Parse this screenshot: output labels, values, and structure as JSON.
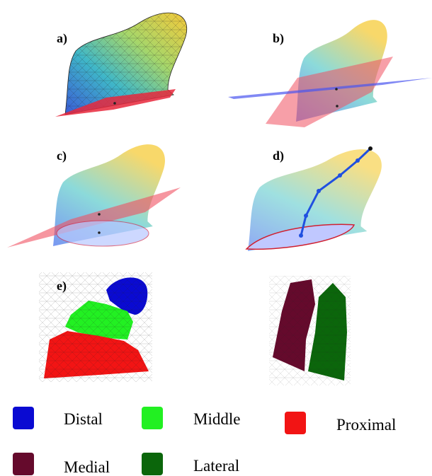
{
  "panels": [
    {
      "label": "a)"
    },
    {
      "label": "b)"
    },
    {
      "label": "c)"
    },
    {
      "label": "d)"
    },
    {
      "label": "e)"
    }
  ],
  "legend": [
    {
      "label": "Distal",
      "color": "#0a0ad2"
    },
    {
      "label": "Middle",
      "color": "#22f022"
    },
    {
      "label": "Proximal",
      "color": "#f21414"
    },
    {
      "label": "Medial",
      "color": "#650a2c"
    },
    {
      "label": "Lateral",
      "color": "#0b660b"
    }
  ]
}
